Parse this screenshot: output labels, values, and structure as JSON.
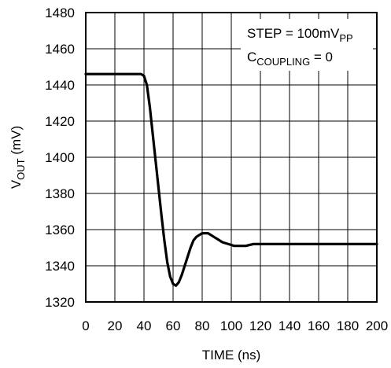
{
  "chart_data": {
    "type": "line",
    "xlabel": "TIME (ns)",
    "ylabel_main": "V",
    "ylabel_sub": "OUT",
    "ylabel_unit": " (mV)",
    "xlim": [
      0,
      200
    ],
    "ylim": [
      1320,
      1480
    ],
    "x_ticks": [
      0,
      20,
      40,
      60,
      80,
      100,
      120,
      140,
      160,
      180,
      200
    ],
    "y_ticks": [
      1320,
      1340,
      1360,
      1380,
      1400,
      1420,
      1440,
      1460,
      1480
    ],
    "x_tick_labels": [
      "0",
      "20",
      "40",
      "60",
      "80",
      "100",
      "120",
      "140",
      "160",
      "180",
      "200"
    ],
    "y_tick_labels": [
      "1320",
      "1340",
      "1360",
      "1380",
      "1400",
      "1420",
      "1440",
      "1460",
      "1480"
    ],
    "grid": true,
    "annotations": {
      "line1_main": "STEP = 100mV",
      "line1_sub": "PP",
      "line2_main": "C",
      "line2_sub": "COUPLING",
      "line2_tail": " = 0"
    },
    "series": [
      {
        "color": "#000000",
        "x": [
          0,
          20,
          38,
          40,
          42,
          44,
          46,
          48,
          50,
          52,
          54,
          56,
          58,
          60,
          62,
          64,
          66,
          68,
          70,
          72,
          74,
          76,
          78,
          80,
          82,
          84,
          86,
          88,
          90,
          94,
          98,
          102,
          106,
          110,
          115,
          120,
          125,
          130,
          140,
          160,
          180,
          200
        ],
        "y": [
          1446,
          1446,
          1446,
          1445,
          1440,
          1428,
          1413,
          1398,
          1383,
          1368,
          1354,
          1342,
          1334,
          1330,
          1329,
          1331,
          1335,
          1340,
          1345,
          1350,
          1354,
          1356,
          1357,
          1358,
          1358,
          1358,
          1357,
          1356,
          1355,
          1353,
          1352,
          1351,
          1351,
          1351,
          1352,
          1352,
          1352,
          1352,
          1352,
          1352,
          1352,
          1352
        ]
      }
    ]
  }
}
